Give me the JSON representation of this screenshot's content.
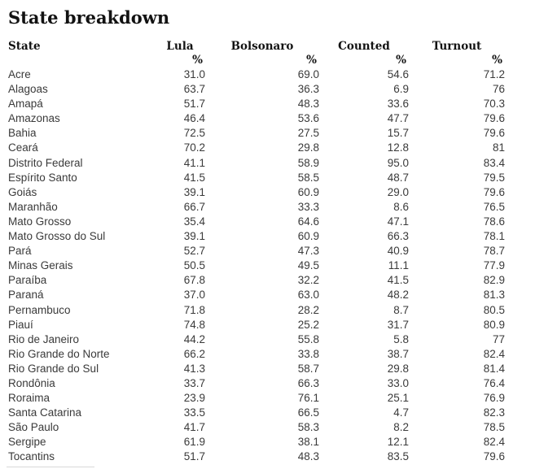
{
  "chart_data": {
    "type": "table",
    "title": "State breakdown",
    "state_header": "State",
    "series_headers": [
      {
        "label": "Lula",
        "unit": "%"
      },
      {
        "label": "Bolsonaro",
        "unit": "%"
      },
      {
        "label": "Counted",
        "unit": "%"
      },
      {
        "label": "Turnout",
        "unit": "%"
      }
    ],
    "rows": [
      {
        "state": "Acre",
        "values": [
          "31.0",
          "69.0",
          "54.6",
          "71.2"
        ]
      },
      {
        "state": "Alagoas",
        "values": [
          "63.7",
          "36.3",
          "6.9",
          "76"
        ]
      },
      {
        "state": "Amapá",
        "values": [
          "51.7",
          "48.3",
          "33.6",
          "70.3"
        ]
      },
      {
        "state": "Amazonas",
        "values": [
          "46.4",
          "53.6",
          "47.7",
          "79.6"
        ]
      },
      {
        "state": "Bahia",
        "values": [
          "72.5",
          "27.5",
          "15.7",
          "79.6"
        ]
      },
      {
        "state": "Ceará",
        "values": [
          "70.2",
          "29.8",
          "12.8",
          "81"
        ]
      },
      {
        "state": "Distrito Federal",
        "values": [
          "41.1",
          "58.9",
          "95.0",
          "83.4"
        ]
      },
      {
        "state": "Espírito Santo",
        "values": [
          "41.5",
          "58.5",
          "48.7",
          "79.5"
        ]
      },
      {
        "state": "Goiás",
        "values": [
          "39.1",
          "60.9",
          "29.0",
          "79.6"
        ]
      },
      {
        "state": "Maranhão",
        "values": [
          "66.7",
          "33.3",
          "8.6",
          "76.5"
        ]
      },
      {
        "state": "Mato Grosso",
        "values": [
          "35.4",
          "64.6",
          "47.1",
          "78.6"
        ]
      },
      {
        "state": "Mato Grosso do Sul",
        "values": [
          "39.1",
          "60.9",
          "66.3",
          "78.1"
        ]
      },
      {
        "state": "Pará",
        "values": [
          "52.7",
          "47.3",
          "40.9",
          "78.7"
        ]
      },
      {
        "state": "Minas Gerais",
        "values": [
          "50.5",
          "49.5",
          "11.1",
          "77.9"
        ]
      },
      {
        "state": "Paraíba",
        "values": [
          "67.8",
          "32.2",
          "41.5",
          "82.9"
        ]
      },
      {
        "state": "Paraná",
        "values": [
          "37.0",
          "63.0",
          "48.2",
          "81.3"
        ]
      },
      {
        "state": "Pernambuco",
        "values": [
          "71.8",
          "28.2",
          "8.7",
          "80.5"
        ]
      },
      {
        "state": "Piauí",
        "values": [
          "74.8",
          "25.2",
          "31.7",
          "80.9"
        ]
      },
      {
        "state": "Rio de Janeiro",
        "values": [
          "44.2",
          "55.8",
          "5.8",
          "77"
        ]
      },
      {
        "state": "Rio Grande do Norte",
        "values": [
          "66.2",
          "33.8",
          "38.7",
          "82.4"
        ]
      },
      {
        "state": "Rio Grande do Sul",
        "values": [
          "41.3",
          "58.7",
          "29.8",
          "81.4"
        ]
      },
      {
        "state": "Rondônia",
        "values": [
          "33.7",
          "66.3",
          "33.0",
          "76.4"
        ]
      },
      {
        "state": "Roraima",
        "values": [
          "23.9",
          "76.1",
          "25.1",
          "76.9"
        ]
      },
      {
        "state": "Santa Catarina",
        "values": [
          "33.5",
          "66.5",
          "4.7",
          "82.3"
        ]
      },
      {
        "state": "São Paulo",
        "values": [
          "41.7",
          "58.3",
          "8.2",
          "78.5"
        ]
      },
      {
        "state": "Sergipe",
        "values": [
          "61.9",
          "38.1",
          "12.1",
          "82.4"
        ]
      },
      {
        "state": "Tocantins",
        "values": [
          "51.7",
          "48.3",
          "83.5",
          "79.6"
        ]
      }
    ]
  },
  "colors": {
    "heading_text": "#121212",
    "body_text": "#3a3a3a",
    "background": "#ffffff",
    "divider": "#d9d9d9"
  }
}
